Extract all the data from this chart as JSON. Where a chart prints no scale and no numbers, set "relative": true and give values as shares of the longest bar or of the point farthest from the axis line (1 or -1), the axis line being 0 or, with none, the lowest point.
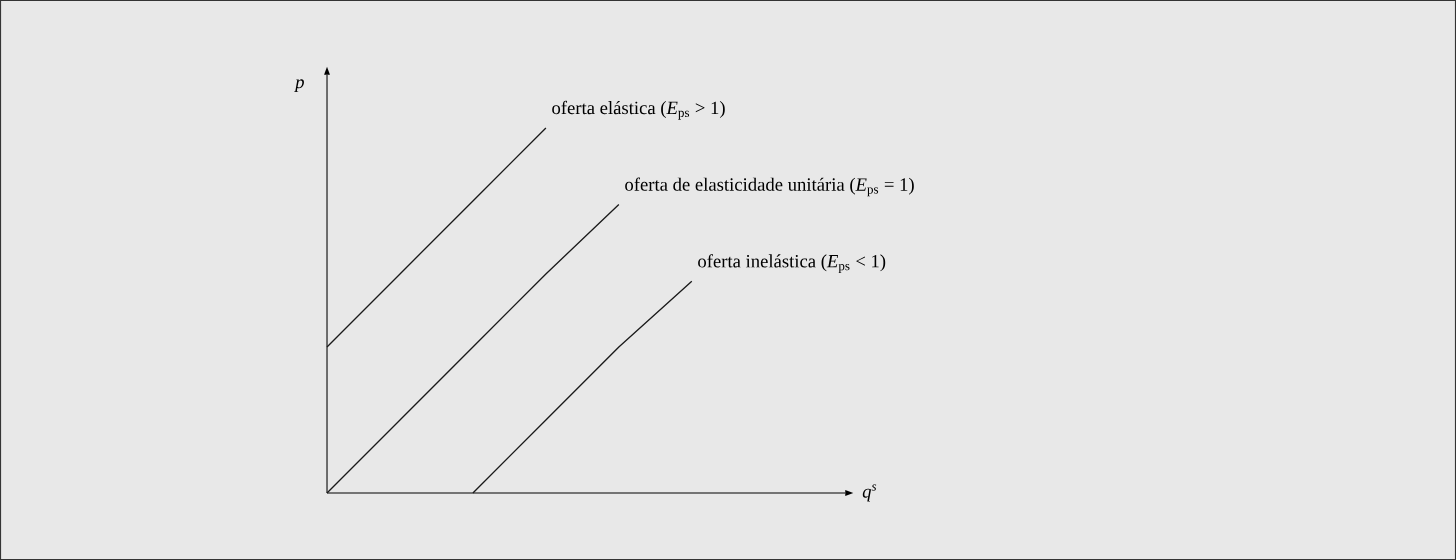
{
  "chart_data": {
    "type": "line",
    "relative": true,
    "xlabel": "q$^{s}$",
    "ylabel": "p",
    "categories": [
      null,
      null,
      null,
      null,
      null,
      null,
      null,
      null
    ],
    "series": [
      {
        "name": "oferta elástica (*E*$_{ps}$ > 1)",
        "color": "#1a1a1a",
        "values": [
          0.4,
          0.6,
          0.8,
          1.0,
          null,
          null,
          null,
          null
        ]
      },
      {
        "name": "oferta de elasticidade unitária (*E*$_{ps}$ = 1)",
        "color": "#1a1a1a",
        "values": [
          0,
          0.2,
          0.4,
          0.6,
          0.79,
          null,
          null,
          null
        ]
      },
      {
        "name": "oferta inelástica (*E*$_{ps}$ < 1)",
        "color": "#1a1a1a",
        "values": [
          null,
          null,
          0,
          0.2,
          0.4,
          0.58,
          null,
          null
        ]
      }
    ]
  }
}
